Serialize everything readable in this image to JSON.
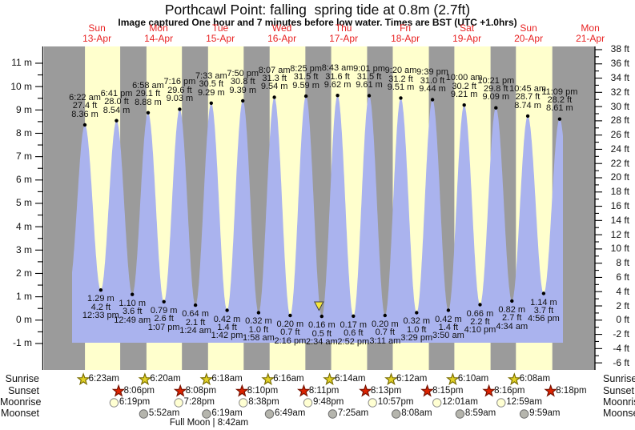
{
  "title": "Porthcawl Point: falling  spring tide at 0.8m (2.7ft)",
  "subtitle": "Image captured One hour and 7 minutes before low water. Times are BST (UTC +1.0hrs)",
  "days": [
    {
      "name": "Sun",
      "date": "13-Apr"
    },
    {
      "name": "Mon",
      "date": "14-Apr"
    },
    {
      "name": "Tue",
      "date": "15-Apr"
    },
    {
      "name": "Wed",
      "date": "16-Apr"
    },
    {
      "name": "Thu",
      "date": "17-Apr"
    },
    {
      "name": "Fri",
      "date": "18-Apr"
    },
    {
      "name": "Sat",
      "date": "19-Apr"
    },
    {
      "name": "Sun",
      "date": "20-Apr"
    },
    {
      "name": "Mon",
      "date": "21-Apr"
    }
  ],
  "chart_data": {
    "type": "area",
    "title": "Porthcawl Point tide curve 13-Apr to 21-Apr",
    "ylim_m": [
      -1,
      11
    ],
    "ylim_ft": [
      -6,
      38
    ],
    "ticks_left": [
      "11 m",
      "10 m",
      "9 m",
      "8 m",
      "7 m",
      "6 m",
      "5 m",
      "4 m",
      "3 m",
      "2 m",
      "1 m",
      "0 m",
      "-1 m"
    ],
    "ticks_right": [
      "38 ft",
      "36 ft",
      "34 ft",
      "32 ft",
      "30 ft",
      "28 ft",
      "26 ft",
      "24 ft",
      "22 ft",
      "20 ft",
      "18 ft",
      "16 ft",
      "14 ft",
      "12 ft",
      "10 ft",
      "8 ft",
      "6 ft",
      "4 ft",
      "2 ft",
      "0 ft",
      "-2 ft",
      "-4 ft",
      "-6 ft"
    ],
    "high_tides": [
      {
        "day": 0,
        "time": "6:22 am",
        "ft": "27.4 ft",
        "m": "8.36 m",
        "height_m": 8.36
      },
      {
        "day": 0,
        "time": "6:41 pm",
        "ft": "28.0 ft",
        "m": "8.54 m",
        "height_m": 8.54
      },
      {
        "day": 1,
        "time": "6:58 am",
        "ft": "29.1 ft",
        "m": "8.88 m",
        "height_m": 8.88
      },
      {
        "day": 1,
        "time": "7:16 pm",
        "ft": "29.6 ft",
        "m": "9.03 m",
        "height_m": 9.03
      },
      {
        "day": 2,
        "time": "7:33 am",
        "ft": "30.5 ft",
        "m": "9.29 m",
        "height_m": 9.29
      },
      {
        "day": 2,
        "time": "7:50 pm",
        "ft": "30.8 ft",
        "m": "9.39 m",
        "height_m": 9.39
      },
      {
        "day": 3,
        "time": "8:07 am",
        "ft": "31.3 ft",
        "m": "9.54 m",
        "height_m": 9.54
      },
      {
        "day": 3,
        "time": "8:25 pm",
        "ft": "31.5 ft",
        "m": "9.59 m",
        "height_m": 9.59
      },
      {
        "day": 4,
        "time": "8:43 am",
        "ft": "31.6 ft",
        "m": "9.62 m",
        "height_m": 9.62
      },
      {
        "day": 4,
        "time": "9:01 pm",
        "ft": "31.5 ft",
        "m": "9.61 m",
        "height_m": 9.61
      },
      {
        "day": 5,
        "time": "9:20 am",
        "ft": "31.2 ft",
        "m": "9.51 m",
        "height_m": 9.51
      },
      {
        "day": 5,
        "time": "9:39 pm",
        "ft": "31.0 ft",
        "m": "9.44 m",
        "height_m": 9.44
      },
      {
        "day": 6,
        "time": "10:00 am",
        "ft": "30.2 ft",
        "m": "9.21 m",
        "height_m": 9.21
      },
      {
        "day": 6,
        "time": "10:21 pm",
        "ft": "29.8 ft",
        "m": "9.09 m",
        "height_m": 9.09
      },
      {
        "day": 7,
        "time": "10:45 am",
        "ft": "28.7 ft",
        "m": "8.74 m",
        "height_m": 8.74
      },
      {
        "day": 7,
        "time": "11:09 pm",
        "ft": "28.2 ft",
        "m": "8.61 m",
        "height_m": 8.61
      }
    ],
    "low_tides": [
      {
        "day": 0,
        "time": "12:33 pm",
        "m": "1.29 m",
        "ft": "4.2 ft",
        "height_m": 1.29
      },
      {
        "day": 1,
        "time": "12:49 am",
        "m": "1.10 m",
        "ft": "3.6 ft",
        "height_m": 1.1
      },
      {
        "day": 1,
        "time": "1:07 pm",
        "m": "0.79 m",
        "ft": "2.6 ft",
        "height_m": 0.79
      },
      {
        "day": 2,
        "time": "1:24 am",
        "m": "0.64 m",
        "ft": "2.1 ft",
        "height_m": 0.64
      },
      {
        "day": 2,
        "time": "1:42 pm",
        "m": "0.42 m",
        "ft": "1.4 ft",
        "height_m": 0.42
      },
      {
        "day": 3,
        "time": "1:58 am",
        "m": "0.32 m",
        "ft": "1.0 ft",
        "height_m": 0.32
      },
      {
        "day": 3,
        "time": "2:16 pm",
        "m": "0.20 m",
        "ft": "0.7 ft",
        "height_m": 0.2
      },
      {
        "day": 4,
        "time": "2:34 am",
        "m": "0.16 m",
        "ft": "0.5 ft",
        "height_m": 0.16
      },
      {
        "day": 4,
        "time": "2:52 pm",
        "m": "0.17 m",
        "ft": "0.6 ft",
        "height_m": 0.17
      },
      {
        "day": 5,
        "time": "3:11 am",
        "m": "0.20 m",
        "ft": "0.7 ft",
        "height_m": 0.2
      },
      {
        "day": 5,
        "time": "3:29 pm",
        "m": "0.32 m",
        "ft": "1.0 ft",
        "height_m": 0.32
      },
      {
        "day": 6,
        "time": "3:50 am",
        "m": "0.42 m",
        "ft": "1.4 ft",
        "height_m": 0.42
      },
      {
        "day": 6,
        "time": "4:10 pm",
        "m": "0.66 m",
        "ft": "2.2 ft",
        "height_m": 0.66
      },
      {
        "day": 7,
        "time": "4:34 am",
        "m": "0.82 m",
        "ft": "2.7 ft",
        "height_m": 0.82
      },
      {
        "day": 7,
        "time": "4:56 pm",
        "m": "1.14 m",
        "ft": "3.7 ft",
        "height_m": 1.14
      }
    ],
    "curve_edges": {
      "start": {
        "t_hours": 0.2,
        "height_m": 1.45
      },
      "end": {
        "t_hours": 197.4,
        "height_m": 1.5
      },
      "clip_t_hours": [
        1.37,
        192.45
      ]
    },
    "current_marker": {
      "day": 4,
      "time": "1:27 am",
      "height_m": 0.8
    }
  },
  "astro": {
    "row_labels": [
      "Sunrise",
      "Sunset",
      "Moonrise",
      "Moonset"
    ],
    "sunrise": {
      "icon": "sunrise-star-icon",
      "entries": [
        {
          "day": 0,
          "time": "6:23am"
        },
        {
          "day": 1,
          "time": "6:20am"
        },
        {
          "day": 2,
          "time": "6:18am"
        },
        {
          "day": 3,
          "time": "6:16am"
        },
        {
          "day": 4,
          "time": "6:14am"
        },
        {
          "day": 5,
          "time": "6:12am"
        },
        {
          "day": 6,
          "time": "6:10am"
        },
        {
          "day": 7,
          "time": "6:08am"
        }
      ]
    },
    "sunset": {
      "icon": "sunset-star-icon",
      "entries": [
        {
          "day": 0,
          "time": "8:06pm"
        },
        {
          "day": 1,
          "time": "8:08pm"
        },
        {
          "day": 2,
          "time": "8:10pm"
        },
        {
          "day": 3,
          "time": "8:11pm"
        },
        {
          "day": 4,
          "time": "8:13pm"
        },
        {
          "day": 5,
          "time": "8:15pm"
        },
        {
          "day": 6,
          "time": "8:16pm"
        },
        {
          "day": 7,
          "time": "8:18pm"
        }
      ]
    },
    "moonrise": {
      "icon": "moonrise-circle-icon",
      "entries": [
        {
          "day": 0,
          "time": "6:19pm"
        },
        {
          "day": 1,
          "time": "7:28pm"
        },
        {
          "day": 2,
          "time": "8:38pm"
        },
        {
          "day": 3,
          "time": "9:48pm"
        },
        {
          "day": 4,
          "time": "10:57pm"
        },
        {
          "day": 6,
          "time": "12:01am"
        },
        {
          "day": 7,
          "time": "12:59am"
        }
      ]
    },
    "moonset": {
      "icon": "moonset-circle-icon",
      "entries": [
        {
          "day": 1,
          "time": "5:52am"
        },
        {
          "day": 2,
          "time": "6:19am"
        },
        {
          "day": 3,
          "time": "6:49am"
        },
        {
          "day": 4,
          "time": "7:25am"
        },
        {
          "day": 5,
          "time": "8:08am"
        },
        {
          "day": 6,
          "time": "8:59am"
        },
        {
          "day": 7,
          "time": "9:59am"
        }
      ]
    },
    "moon_phase": "Full Moon | 8:42am"
  },
  "colors": {
    "night_band": "#9b9b9b",
    "day_band": "#ffffcd",
    "tide_area": "#aab3ee",
    "day_label_red": "#e82222",
    "sunrise_star": "#e3d226",
    "sunrise_star_border": "#7a6e00",
    "sunset_star": "#dd2200",
    "sunset_star_border": "#771100",
    "moonrise_fill": "#ffffd2",
    "moonrise_border": "#8a8a8a",
    "moonset_fill": "#b5b5ad",
    "moonset_border": "#6d6d6d",
    "marker_fill": "#f6e63c",
    "marker_border": "#444444",
    "text": "#111111"
  }
}
